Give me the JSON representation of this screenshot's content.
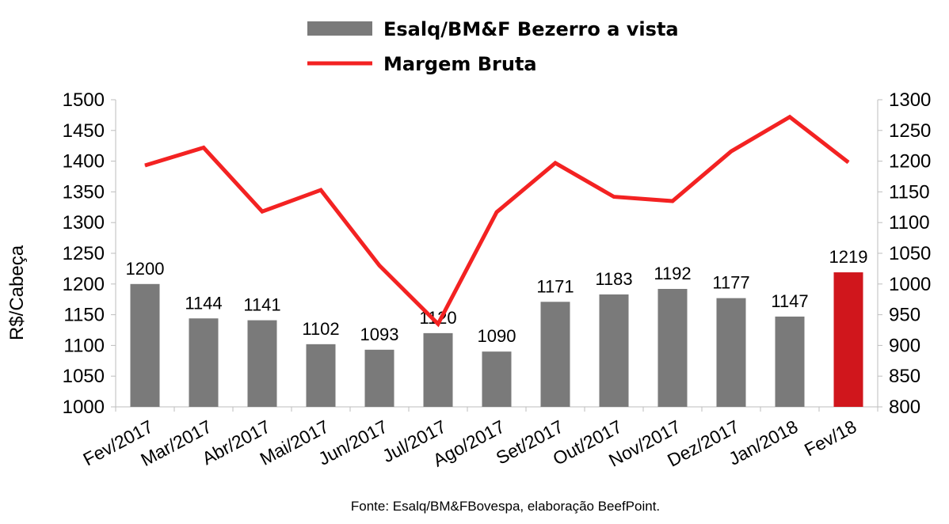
{
  "chart_data": {
    "type": "bar",
    "categories": [
      "Fev/2017",
      "Mar/2017",
      "Abr/2017",
      "Mai/2017",
      "Jun/2017",
      "Jul/2017",
      "Ago/2017",
      "Set/2017",
      "Out/2017",
      "Nov/2017",
      "Dez/2017",
      "Jan/2018",
      "Fev/18"
    ],
    "series": [
      {
        "name": "Esalq/BM&F Bezerro a vista",
        "type": "bar",
        "axis": "left",
        "values": [
          1200,
          1144,
          1141,
          1102,
          1093,
          1120,
          1090,
          1171,
          1183,
          1192,
          1177,
          1147,
          1219
        ],
        "color": "#7a7a7a",
        "highlight_color": "#d0161c",
        "highlight_index": 12
      },
      {
        "name": "Margem Bruta",
        "type": "line",
        "axis": "right",
        "values": [
          1193,
          1222,
          1118,
          1153,
          1030,
          935,
          1117,
          1197,
          1142,
          1135,
          1216,
          1272,
          1198
        ],
        "color": "#f32222"
      }
    ],
    "ylabel": "R$/Cabeça",
    "ylim": [
      1000,
      1500
    ],
    "yticks": [
      "1000",
      "1050",
      "1100",
      "1150",
      "1200",
      "1250",
      "1300",
      "1350",
      "1400",
      "1450",
      "1500"
    ],
    "y2lim": [
      800,
      1300
    ],
    "y2ticks": [
      "800",
      "850",
      "900",
      "950",
      "1000",
      "1050",
      "1100",
      "1150",
      "1200",
      "1250",
      "1300"
    ],
    "legend_position": "top",
    "grid": false,
    "source": "Fonte: Esalq/BM&FBovespa, elaboração BeefPoint."
  }
}
